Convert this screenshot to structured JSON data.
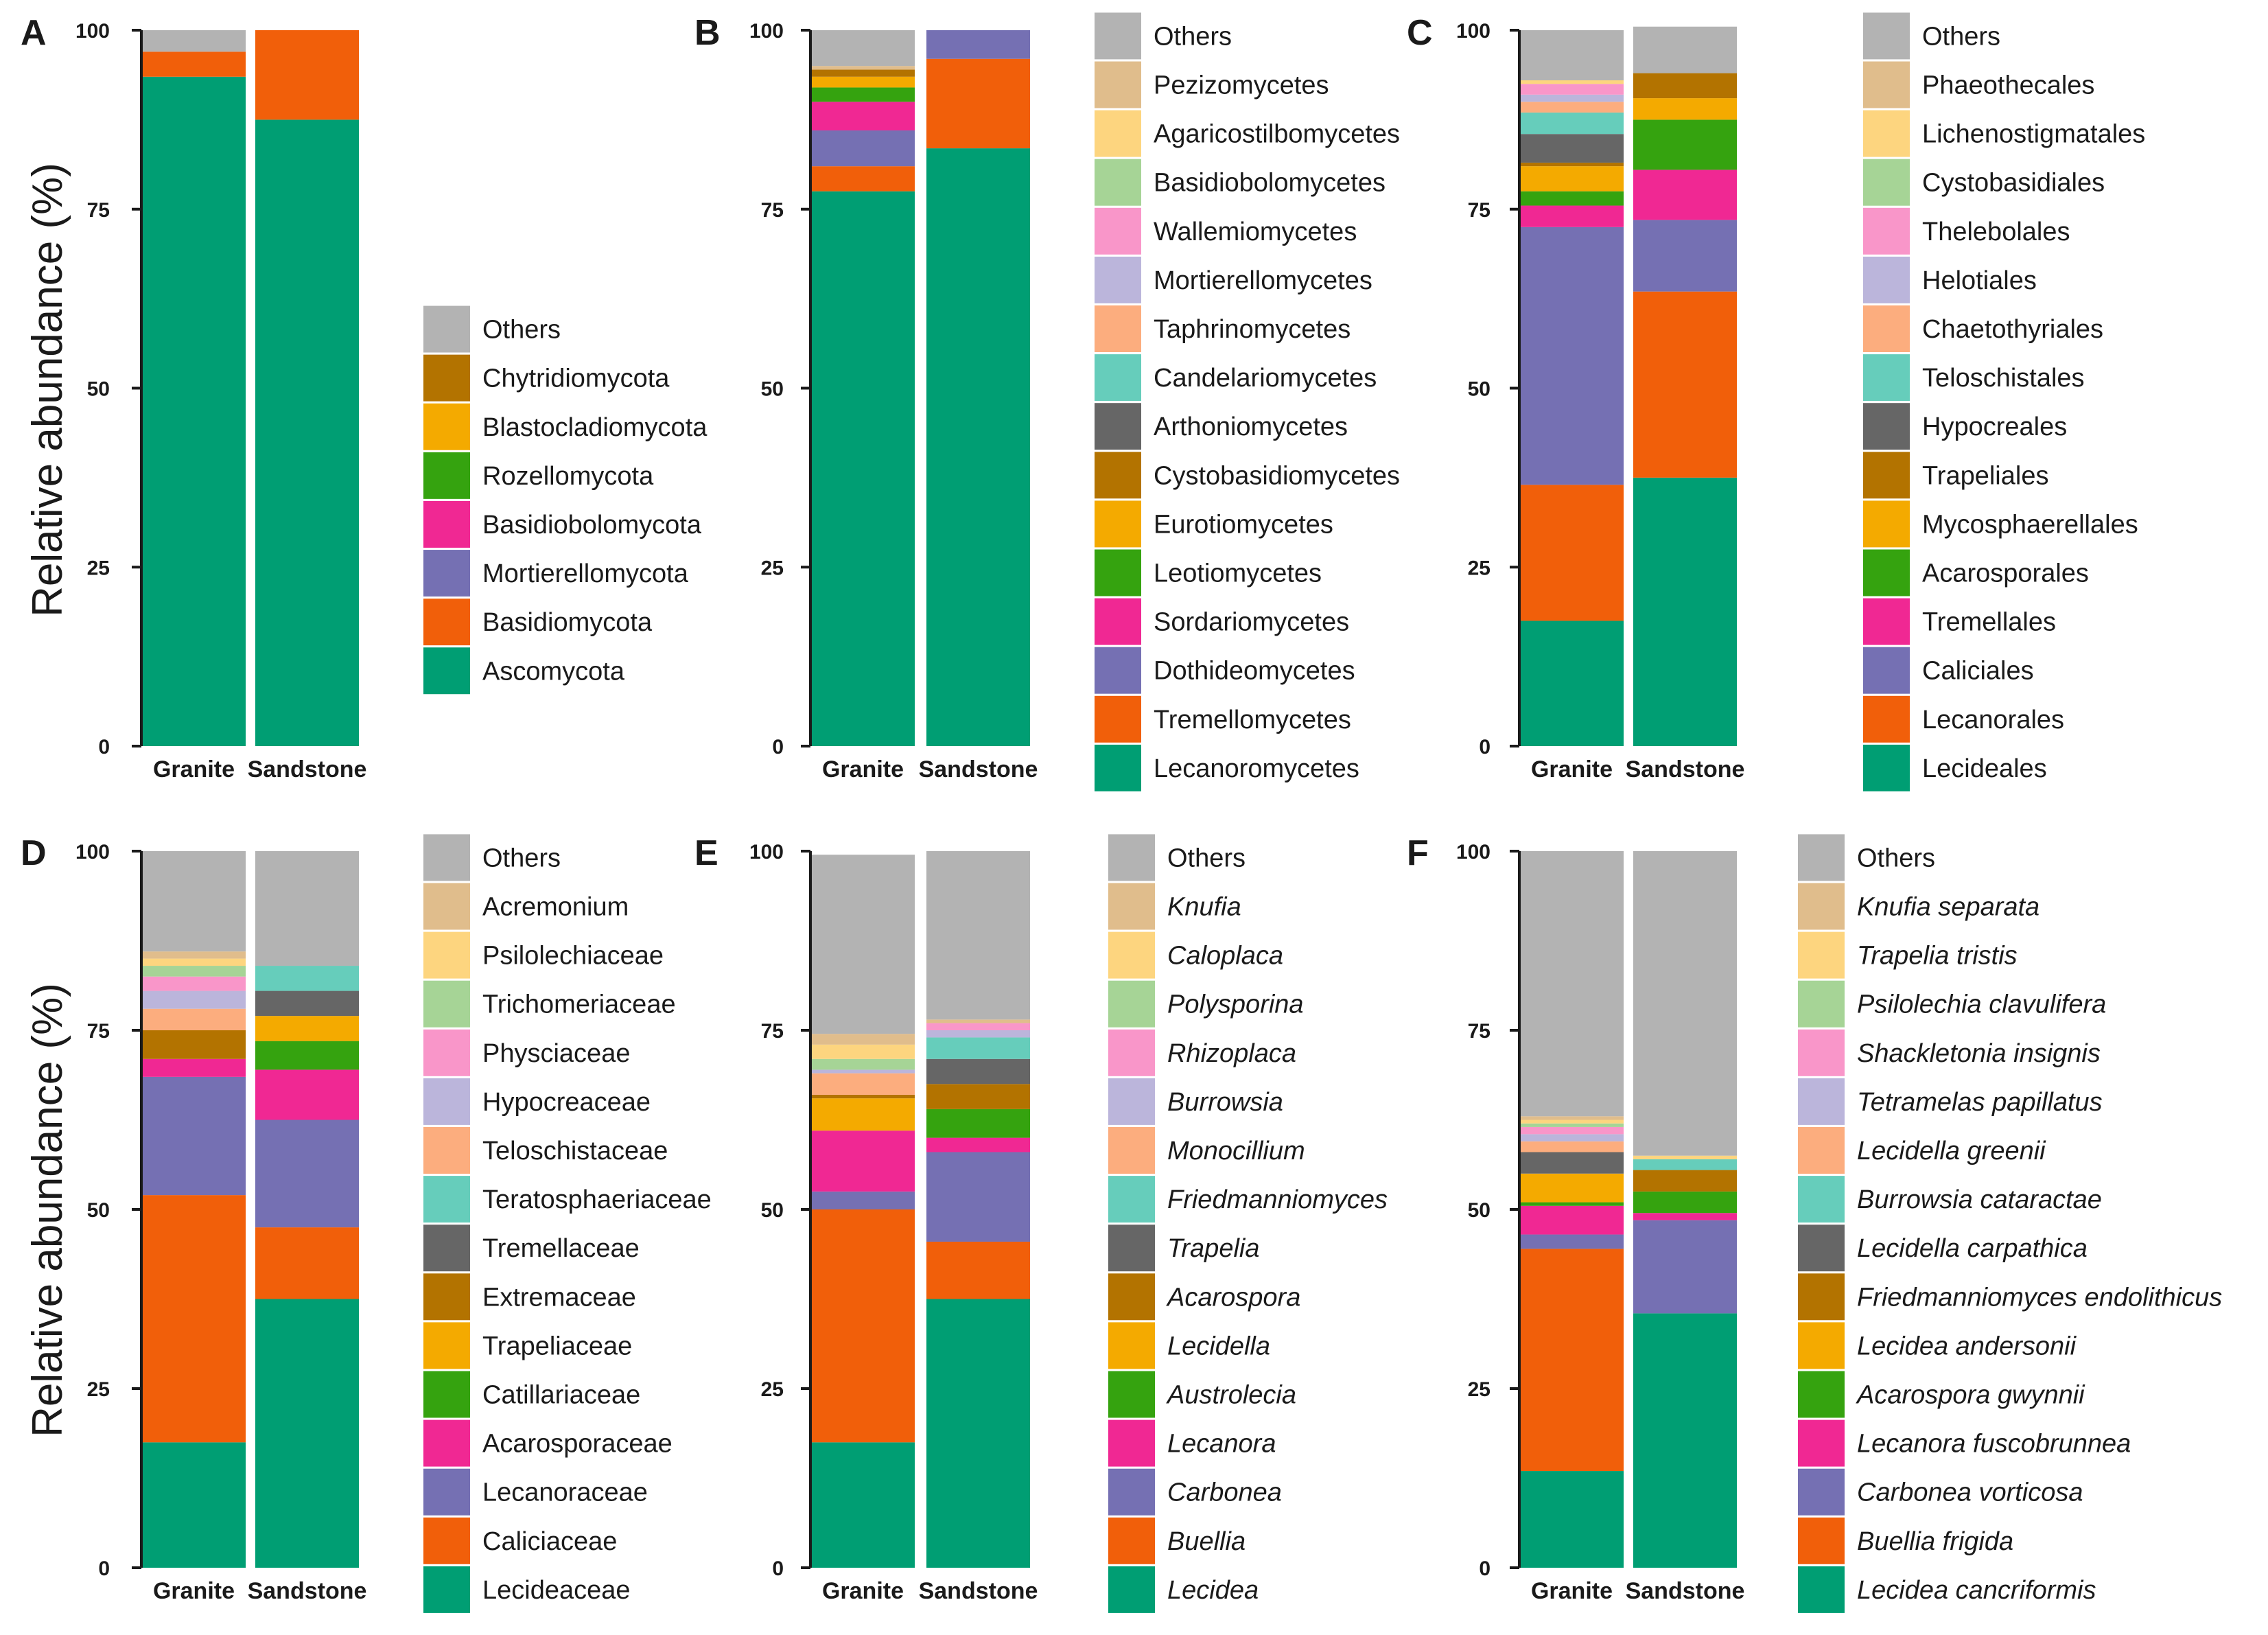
{
  "colors": {
    "Others": "#b3b3b3",
    "palette": [
      "#009e73",
      "#f15f0a",
      "#7570b3",
      "#f02893",
      "#35a30f",
      "#f4aa00",
      "#b37300",
      "#666666",
      "#66cdbb",
      "#fcad7e",
      "#bbb5db",
      "#f996c9",
      "#a6d496",
      "#fdd57f",
      "#e0bd8c"
    ]
  },
  "chart_data": [
    {
      "id": "A",
      "type": "bar",
      "stacked": true,
      "italic": false,
      "ylabel": "Relative abundance (%)",
      "ylim": [
        0,
        100
      ],
      "yticks": [
        0,
        25,
        50,
        75,
        100
      ],
      "categories": [
        "Granite",
        "Sandstone"
      ],
      "legend": [
        "Others",
        "Chytridiomycota",
        "Blastocladiomycota",
        "Rozellomycota",
        "Basidiobolomycota",
        "Mortierellomycota",
        "Basidiomycota",
        "Ascomycota"
      ],
      "series": [
        {
          "name": "Ascomycota",
          "values": [
            93.5,
            87.5
          ]
        },
        {
          "name": "Basidiomycota",
          "values": [
            3.5,
            12.5
          ]
        },
        {
          "name": "Mortierellomycota",
          "values": [
            0.0,
            0.0
          ]
        },
        {
          "name": "Basidiobolomycota",
          "values": [
            0.0,
            0.0
          ]
        },
        {
          "name": "Rozellomycota",
          "values": [
            0.0,
            0.0
          ]
        },
        {
          "name": "Blastocladiomycota",
          "values": [
            0.0,
            0.0
          ]
        },
        {
          "name": "Chytridiomycota",
          "values": [
            0.0,
            0.0
          ]
        },
        {
          "name": "Others",
          "values": [
            3.0,
            0.0
          ]
        }
      ]
    },
    {
      "id": "B",
      "type": "bar",
      "stacked": true,
      "italic": false,
      "ylabel": "",
      "ylim": [
        0,
        100
      ],
      "yticks": [
        0,
        25,
        50,
        75,
        100
      ],
      "categories": [
        "Granite",
        "Sandstone"
      ],
      "legend": [
        "Others",
        "Pezizomycetes",
        "Agaricostilbomycetes",
        "Basidiobolomycetes",
        "Wallemiomycetes",
        "Mortierellomycetes",
        "Taphrinomycetes",
        "Candelariomycetes",
        "Arthoniomycetes",
        "Cystobasidiomycetes",
        "Eurotiomycetes",
        "Leotiomycetes",
        "Sordariomycetes",
        "Dothideomycetes",
        "Tremellomycetes",
        "Lecanoromycetes"
      ],
      "series": [
        {
          "name": "Lecanoromycetes",
          "values": [
            77.5,
            83.5
          ]
        },
        {
          "name": "Tremellomycetes",
          "values": [
            3.5,
            12.5
          ]
        },
        {
          "name": "Dothideomycetes",
          "values": [
            5.0,
            4.0
          ]
        },
        {
          "name": "Sordariomycetes",
          "values": [
            4.0,
            0.0
          ]
        },
        {
          "name": "Leotiomycetes",
          "values": [
            2.0,
            0.0
          ]
        },
        {
          "name": "Eurotiomycetes",
          "values": [
            1.5,
            0.0
          ]
        },
        {
          "name": "Cystobasidiomycetes",
          "values": [
            1.0,
            0.0
          ]
        },
        {
          "name": "Arthoniomycetes",
          "values": [
            0.0,
            0.0
          ]
        },
        {
          "name": "Candelariomycetes",
          "values": [
            0.0,
            0.0
          ]
        },
        {
          "name": "Taphrinomycetes",
          "values": [
            0.0,
            0.0
          ]
        },
        {
          "name": "Mortierellomycetes",
          "values": [
            0.0,
            0.0
          ]
        },
        {
          "name": "Wallemiomycetes",
          "values": [
            0.0,
            0.0
          ]
        },
        {
          "name": "Basidiobolomycetes",
          "values": [
            0.0,
            0.0
          ]
        },
        {
          "name": "Agaricostilbomycetes",
          "values": [
            0.0,
            0.0
          ]
        },
        {
          "name": "Pezizomycetes",
          "values": [
            0.5,
            0.0
          ]
        },
        {
          "name": "Others",
          "values": [
            5.0,
            0.0
          ]
        }
      ]
    },
    {
      "id": "C",
      "type": "bar",
      "stacked": true,
      "italic": false,
      "ylabel": "",
      "ylim": [
        0,
        100
      ],
      "yticks": [
        0,
        25,
        50,
        75,
        100
      ],
      "categories": [
        "Granite",
        "Sandstone"
      ],
      "legend": [
        "Others",
        "Phaeothecales",
        "Lichenostigmatales",
        "Cystobasidiales",
        "Thelebolales",
        "Helotiales",
        "Chaetothyriales",
        "Teloschistales",
        "Hypocreales",
        "Trapeliales",
        "Mycosphaerellales",
        "Acarosporales",
        "Tremellales",
        "Caliciales",
        "Lecanorales",
        "Lecideales"
      ],
      "series": [
        {
          "name": "Lecideales",
          "values": [
            17.5,
            37.5
          ]
        },
        {
          "name": "Lecanorales",
          "values": [
            19.0,
            26.0
          ]
        },
        {
          "name": "Caliciales",
          "values": [
            36.0,
            10.0
          ]
        },
        {
          "name": "Tremellales",
          "values": [
            3.0,
            7.0
          ]
        },
        {
          "name": "Acarosporales",
          "values": [
            2.0,
            7.0
          ]
        },
        {
          "name": "Mycosphaerellales",
          "values": [
            3.5,
            3.0
          ]
        },
        {
          "name": "Trapeliales",
          "values": [
            0.5,
            3.5
          ]
        },
        {
          "name": "Hypocreales",
          "values": [
            4.0,
            0.0
          ]
        },
        {
          "name": "Teloschistales",
          "values": [
            3.0,
            0.0
          ]
        },
        {
          "name": "Chaetothyriales",
          "values": [
            1.5,
            0.0
          ]
        },
        {
          "name": "Helotiales",
          "values": [
            1.0,
            0.0
          ]
        },
        {
          "name": "Thelebolales",
          "values": [
            1.5,
            0.0
          ]
        },
        {
          "name": "Cystobasidiales",
          "values": [
            0.0,
            0.0
          ]
        },
        {
          "name": "Lichenostigmatales",
          "values": [
            0.5,
            0.0
          ]
        },
        {
          "name": "Phaeothecales",
          "values": [
            0.0,
            0.0
          ]
        },
        {
          "name": "Others",
          "values": [
            7.0,
            6.5
          ]
        }
      ]
    },
    {
      "id": "D",
      "type": "bar",
      "stacked": true,
      "italic": false,
      "ylabel": "Relative abundance (%)",
      "ylim": [
        0,
        100
      ],
      "yticks": [
        0,
        25,
        50,
        75,
        100
      ],
      "categories": [
        "Granite",
        "Sandstone"
      ],
      "legend": [
        "Others",
        "Acremonium",
        "Psilolechiaceae",
        "Trichomeriaceae",
        "Physciaceae",
        "Hypocreaceae",
        "Teloschistaceae",
        "Teratosphaeriaceae",
        "Tremellaceae",
        "Extremaceae",
        "Trapeliaceae",
        "Catillariaceae",
        "Acarosporaceae",
        "Lecanoraceae",
        "Caliciaceae",
        "Lecideaceae"
      ],
      "series": [
        {
          "name": "Lecideaceae",
          "values": [
            17.5,
            37.5
          ]
        },
        {
          "name": "Caliciaceae",
          "values": [
            34.5,
            10.0
          ]
        },
        {
          "name": "Lecanoraceae",
          "values": [
            16.5,
            15.0
          ]
        },
        {
          "name": "Acarosporaceae",
          "values": [
            2.5,
            7.0
          ]
        },
        {
          "name": "Catillariaceae",
          "values": [
            0.0,
            4.0
          ]
        },
        {
          "name": "Trapeliaceae",
          "values": [
            0.0,
            3.5
          ]
        },
        {
          "name": "Extremaceae",
          "values": [
            4.0,
            0.0
          ]
        },
        {
          "name": "Tremellaceae",
          "values": [
            0.0,
            3.5
          ]
        },
        {
          "name": "Teratosphaeriaceae",
          "values": [
            0.0,
            3.5
          ]
        },
        {
          "name": "Teloschistaceae",
          "values": [
            3.0,
            0.0
          ]
        },
        {
          "name": "Hypocreaceae",
          "values": [
            2.5,
            0.0
          ]
        },
        {
          "name": "Physciaceae",
          "values": [
            2.0,
            0.0
          ]
        },
        {
          "name": "Trichomeriaceae",
          "values": [
            1.5,
            0.0
          ]
        },
        {
          "name": "Psilolechiaceae",
          "values": [
            1.0,
            0.0
          ]
        },
        {
          "name": "Acremonium",
          "values": [
            1.0,
            0.0
          ]
        },
        {
          "name": "Others",
          "values": [
            14.0,
            16.0
          ]
        }
      ]
    },
    {
      "id": "E",
      "type": "bar",
      "stacked": true,
      "italic": true,
      "ylabel": "",
      "ylim": [
        0,
        100
      ],
      "yticks": [
        0,
        25,
        50,
        75,
        100
      ],
      "categories": [
        "Granite",
        "Sandstone"
      ],
      "legend": [
        "Others",
        "Knufia",
        "Caloplaca",
        "Polysporina",
        "Rhizoplaca",
        "Burrowsia",
        "Monocillium",
        "Friedmanniomyces",
        "Trapelia",
        "Acarospora",
        "Lecidella",
        "Austrolecia",
        "Lecanora",
        "Carbonea",
        "Buellia",
        "Lecidea"
      ],
      "series": [
        {
          "name": "Lecidea",
          "values": [
            17.5,
            37.5
          ]
        },
        {
          "name": "Buellia",
          "values": [
            32.5,
            8.0
          ]
        },
        {
          "name": "Carbonea",
          "values": [
            2.5,
            12.5
          ]
        },
        {
          "name": "Lecanora",
          "values": [
            8.5,
            2.0
          ]
        },
        {
          "name": "Austrolecia",
          "values": [
            0.0,
            4.0
          ]
        },
        {
          "name": "Lecidella",
          "values": [
            4.5,
            0.0
          ]
        },
        {
          "name": "Acarospora",
          "values": [
            0.5,
            3.5
          ]
        },
        {
          "name": "Trapelia",
          "values": [
            0.0,
            3.5
          ]
        },
        {
          "name": "Friedmanniomyces",
          "values": [
            0.0,
            3.0
          ]
        },
        {
          "name": "Monocillium",
          "values": [
            3.0,
            0.0
          ]
        },
        {
          "name": "Burrowsia",
          "values": [
            0.5,
            1.0
          ]
        },
        {
          "name": "Rhizoplaca",
          "values": [
            0.0,
            1.0
          ]
        },
        {
          "name": "Polysporina",
          "values": [
            1.5,
            0.0
          ]
        },
        {
          "name": "Caloplaca",
          "values": [
            2.0,
            0.0
          ]
        },
        {
          "name": "Knufia",
          "values": [
            1.5,
            0.5
          ]
        },
        {
          "name": "Others",
          "values": [
            25.0,
            23.5
          ]
        }
      ]
    },
    {
      "id": "F",
      "type": "bar",
      "stacked": true,
      "italic": true,
      "ylabel": "",
      "ylim": [
        0,
        100
      ],
      "yticks": [
        0,
        25,
        50,
        75,
        100
      ],
      "categories": [
        "Granite",
        "Sandstone"
      ],
      "legend": [
        "Others",
        "Knufia separata",
        "Trapelia tristis",
        "Psilolechia clavulifera",
        "Shackletonia insignis",
        "Tetramelas papillatus",
        "Lecidella greenii",
        "Burrowsia cataractae",
        "Lecidella carpathica",
        "Friedmanniomyces endolithicus",
        "Lecidea andersonii",
        "Acarospora gwynnii",
        "Lecanora fuscobrunnea",
        "Carbonea vorticosa",
        "Buellia frigida",
        "Lecidea cancriformis"
      ],
      "series": [
        {
          "name": "Lecidea cancriformis",
          "values": [
            13.5,
            35.5
          ]
        },
        {
          "name": "Buellia frigida",
          "values": [
            31.0,
            0.0
          ]
        },
        {
          "name": "Carbonea vorticosa",
          "values": [
            2.0,
            13.0
          ]
        },
        {
          "name": "Lecanora fuscobrunnea",
          "values": [
            4.0,
            1.0
          ]
        },
        {
          "name": "Acarospora gwynnii",
          "values": [
            0.5,
            3.0
          ]
        },
        {
          "name": "Lecidea andersonii",
          "values": [
            4.0,
            0.0
          ]
        },
        {
          "name": "Friedmanniomyces endolithicus",
          "values": [
            0.0,
            3.0
          ]
        },
        {
          "name": "Lecidella carpathica",
          "values": [
            3.0,
            0.0
          ]
        },
        {
          "name": "Burrowsia cataractae",
          "values": [
            0.0,
            1.5
          ]
        },
        {
          "name": "Lecidella greenii",
          "values": [
            1.5,
            0.0
          ]
        },
        {
          "name": "Tetramelas papillatus",
          "values": [
            1.0,
            0.0
          ]
        },
        {
          "name": "Shackletonia insignis",
          "values": [
            1.0,
            0.0
          ]
        },
        {
          "name": "Psilolechia clavulifera",
          "values": [
            0.5,
            0.0
          ]
        },
        {
          "name": "Trapelia tristis",
          "values": [
            0.5,
            0.5
          ]
        },
        {
          "name": "Knufia separata",
          "values": [
            0.5,
            0.0
          ]
        },
        {
          "name": "Others",
          "values": [
            37.0,
            42.5
          ]
        }
      ]
    }
  ]
}
